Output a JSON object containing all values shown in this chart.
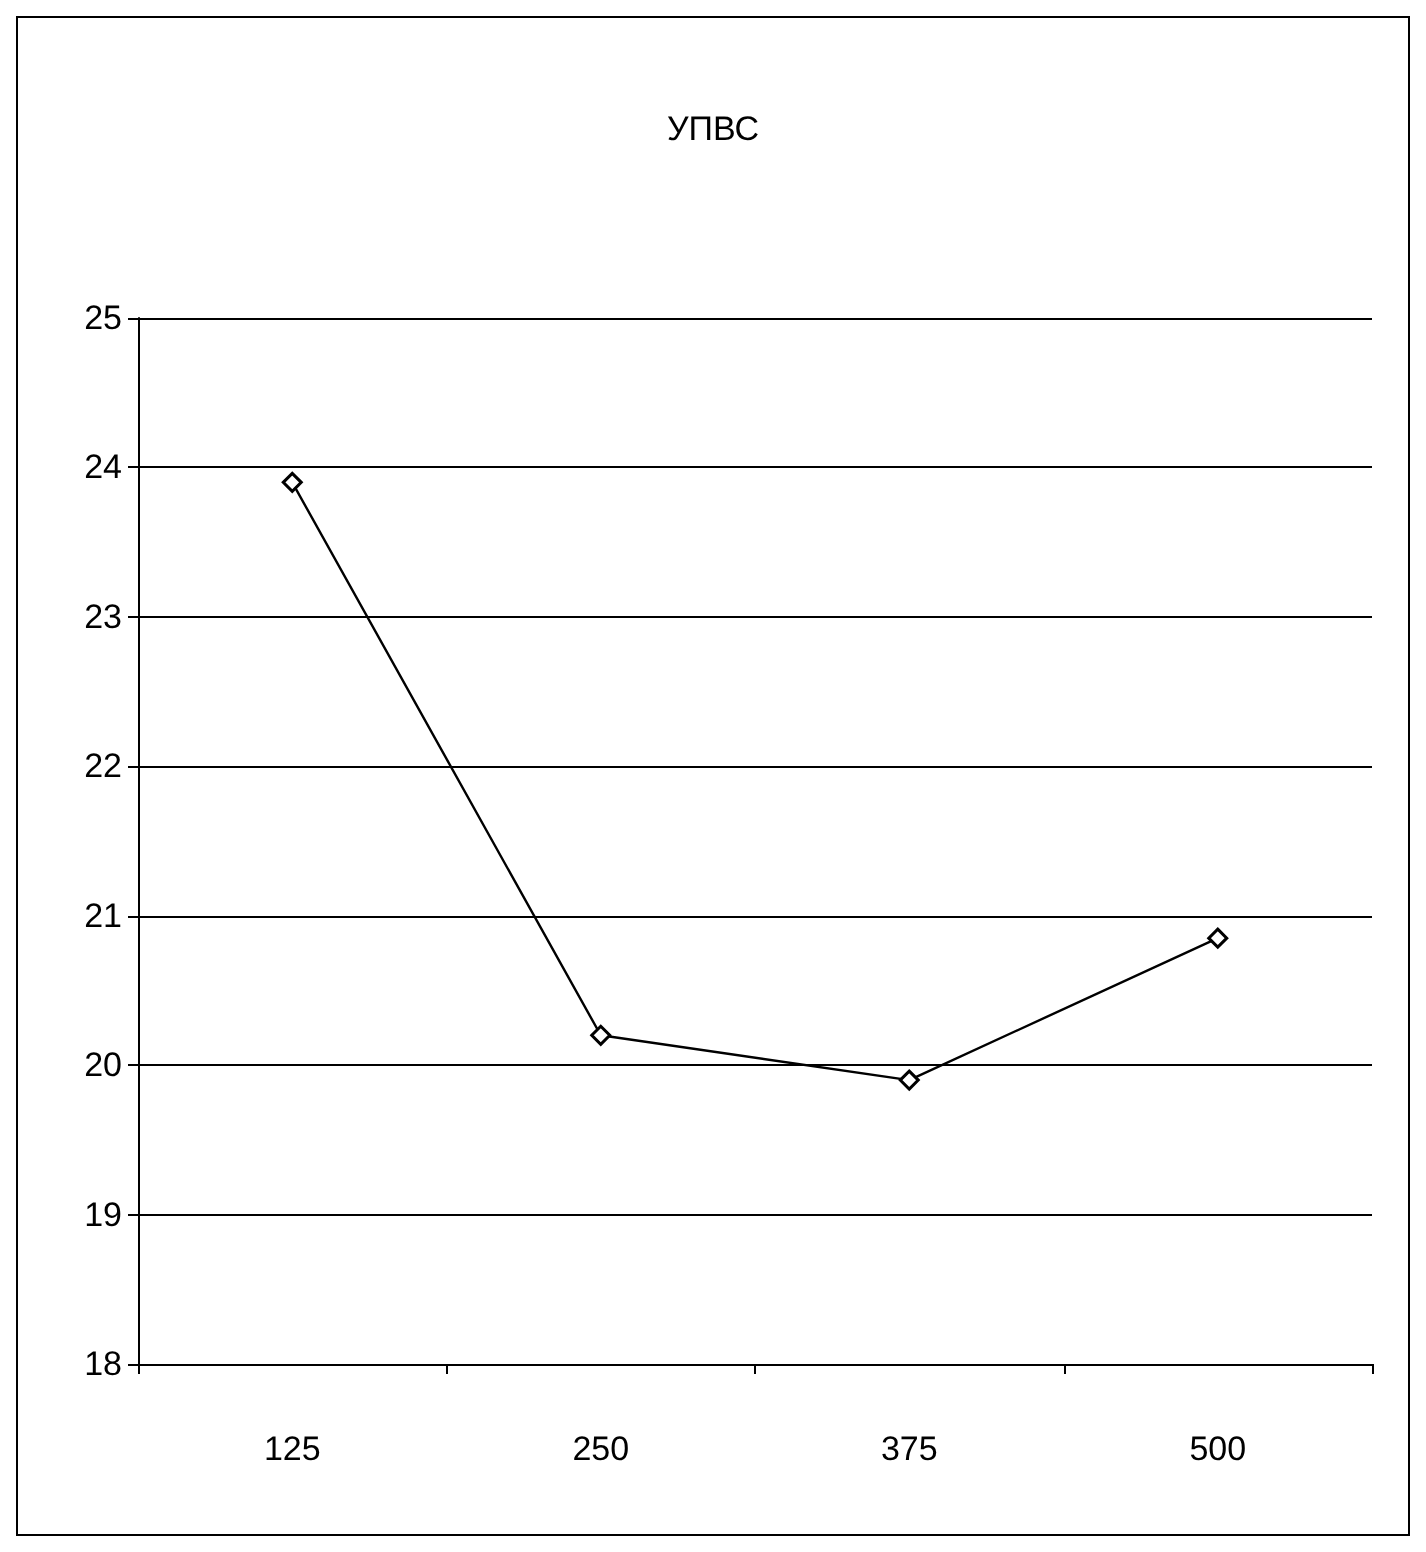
{
  "chart_data": {
    "type": "line",
    "title": "УПВС",
    "categories": [
      "125",
      "250",
      "375",
      "500"
    ],
    "series": [
      {
        "color": "#000000",
        "values": [
          23.9,
          20.2,
          19.9,
          20.85
        ]
      }
    ],
    "ylim": [
      18,
      25
    ],
    "yticks": [
      18,
      19,
      20,
      21,
      22,
      23,
      24,
      25
    ],
    "grid": "y",
    "marker": "diamond",
    "line_style": "solid"
  }
}
